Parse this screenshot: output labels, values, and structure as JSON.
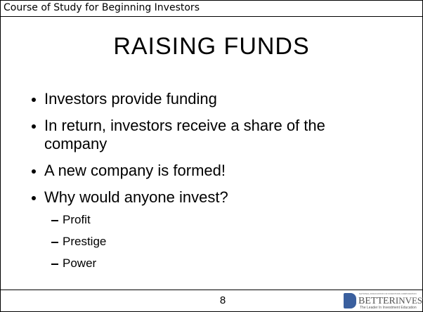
{
  "header": {
    "title": "Course of Study for Beginning Investors"
  },
  "slide": {
    "title": "RAISING FUNDS",
    "bullets": [
      {
        "text": "Investors provide funding"
      },
      {
        "text": "In return, investors receive a share of the company"
      },
      {
        "text": "A new company is formed!"
      },
      {
        "text": "Why would anyone invest?",
        "sub_bullets": [
          "Profit",
          "Prestige",
          "Power"
        ]
      }
    ]
  },
  "footer": {
    "page_number": 8,
    "logo": {
      "org": "NATIONAL ASSOCIATION OF INVESTORS CORPORATION",
      "brand_better": "BETTER",
      "brand_investing": "INVESTING",
      "tagline": "The Leader In Investment Education"
    }
  }
}
